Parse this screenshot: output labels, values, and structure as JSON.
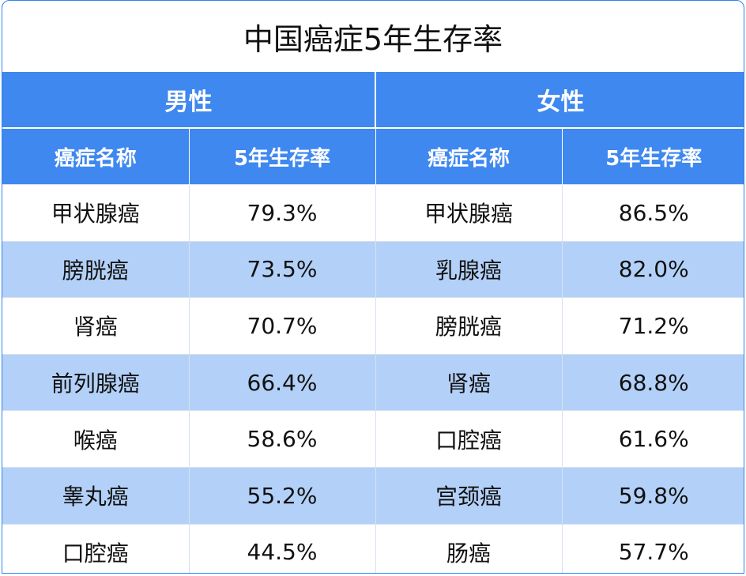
{
  "title": "中国癌症5年生存率",
  "groups": [
    {
      "label": "男性",
      "col_name": "癌症名称",
      "col_rate": "5年生存率"
    },
    {
      "label": "女性",
      "col_name": "癌症名称",
      "col_rate": "5年生存率"
    }
  ],
  "rows": [
    {
      "male_name": "甲状腺癌",
      "male_rate": "79.3%",
      "female_name": "甲状腺癌",
      "female_rate": "86.5%"
    },
    {
      "male_name": "膀胱癌",
      "male_rate": "73.5%",
      "female_name": "乳腺癌",
      "female_rate": "82.0%"
    },
    {
      "male_name": "肾癌",
      "male_rate": "70.7%",
      "female_name": "膀胱癌",
      "female_rate": "71.2%"
    },
    {
      "male_name": "前列腺癌",
      "male_rate": "66.4%",
      "female_name": "肾癌",
      "female_rate": "68.8%"
    },
    {
      "male_name": "喉癌",
      "male_rate": "58.6%",
      "female_name": "口腔癌",
      "female_rate": "61.6%"
    },
    {
      "male_name": "睾丸癌",
      "male_rate": "55.2%",
      "female_name": "宫颈癌",
      "female_rate": "59.8%"
    },
    {
      "male_name": "口腔癌",
      "male_rate": "44.5%",
      "female_name": "肠癌",
      "female_rate": "57.7%"
    }
  ],
  "colors": {
    "header_blue": "#3f88ef",
    "stripe_blue": "#b3d1f8",
    "border": "#2e84ef"
  }
}
